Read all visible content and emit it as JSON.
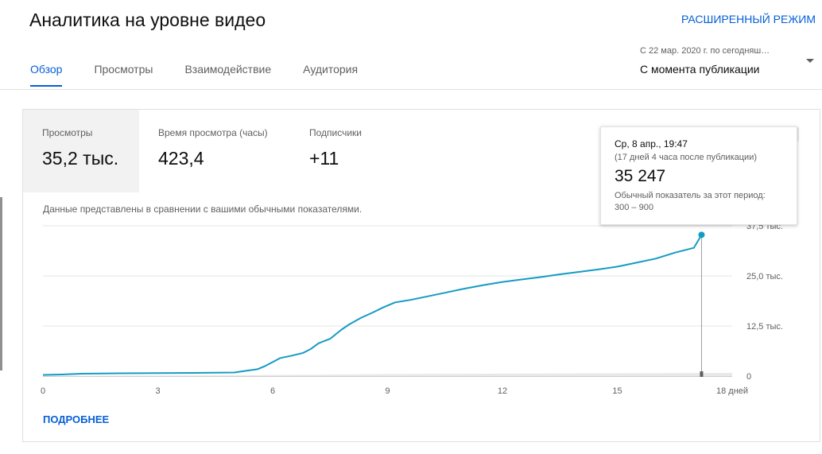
{
  "header": {
    "title": "Аналитика на уровне видео",
    "advanced_mode": "РАСШИРЕННЫЙ РЕЖИМ"
  },
  "tabs": [
    {
      "label": "Обзор",
      "active": true
    },
    {
      "label": "Просмотры",
      "active": false
    },
    {
      "label": "Взаимодействие",
      "active": false
    },
    {
      "label": "Аудитория",
      "active": false
    }
  ],
  "period": {
    "hint": "С 22 мар. 2020 г. по сегодняш…",
    "value": "С момента публикации"
  },
  "metrics": [
    {
      "label": "Просмотры",
      "value": "35,2 тыс.",
      "selected": true
    },
    {
      "label": "Время просмотра (часы)",
      "value": "423,4",
      "selected": false
    },
    {
      "label": "Подписчики",
      "value": "+11",
      "selected": false
    }
  ],
  "compare_note": "Данные представлены в сравнении с вашими обычными показателями.",
  "more_link": "ПОДРОБНЕЕ",
  "tooltip": {
    "date": "Ср, 8 апр., 19:47",
    "note": "(17 дней 4 часа после публикации)",
    "value": "35 247",
    "range_label": "Обычный показатель за этот период:",
    "range": "300 – 900"
  },
  "colors": {
    "accent": "#065fd4",
    "line": "#159bc3",
    "selected_bg": "#f2f2f2"
  },
  "chart_data": {
    "type": "line",
    "x_ticks": [
      "0",
      "3",
      "6",
      "9",
      "12",
      "15",
      "18 дней"
    ],
    "x_tick_values": [
      0,
      3,
      6,
      9,
      12,
      15,
      18
    ],
    "y_ticks": [
      "0",
      "12,5 тыс.",
      "25,0 тыс.",
      "37,5 тыс."
    ],
    "y_tick_values": [
      0,
      12500,
      25000,
      37500
    ],
    "xlim": [
      0,
      18
    ],
    "ylim": [
      0,
      37500
    ],
    "grid": true,
    "series": [
      {
        "x": [
          0,
          0.5,
          1,
          2,
          3,
          4,
          5,
          5.3,
          5.6,
          5.8,
          6,
          6.2,
          6.5,
          6.8,
          7,
          7.2,
          7.5,
          7.8,
          8,
          8.3,
          8.6,
          8.9,
          9.2,
          9.6,
          10,
          10.5,
          11,
          11.5,
          12,
          12.5,
          13,
          13.5,
          14,
          14.5,
          15,
          15.5,
          16,
          16.5,
          17,
          17.2
        ],
        "y": [
          300,
          400,
          600,
          700,
          750,
          800,
          900,
          1300,
          1700,
          2500,
          3500,
          4500,
          5100,
          5800,
          6800,
          8200,
          9300,
          11600,
          12900,
          14500,
          15800,
          17200,
          18400,
          19000,
          19800,
          20800,
          21800,
          22700,
          23500,
          24100,
          24700,
          25400,
          26000,
          26600,
          27300,
          28300,
          29300,
          30800,
          32000,
          35247
        ]
      },
      {
        "x": [
          0,
          5,
          9,
          12,
          15,
          18
        ],
        "y": [
          100,
          200,
          500,
          600,
          700,
          800
        ]
      }
    ],
    "highlight": {
      "x": 17.2,
      "y": 35247
    }
  }
}
